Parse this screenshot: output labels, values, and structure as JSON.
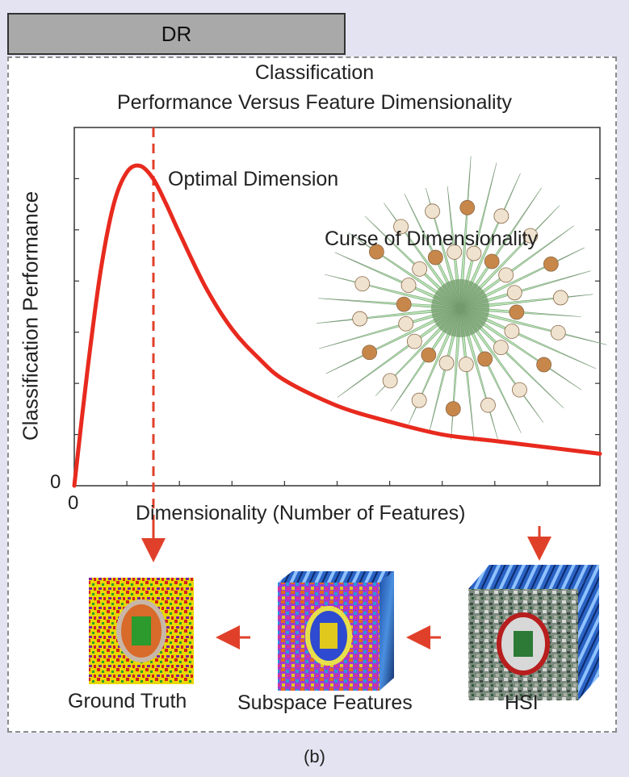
{
  "tab": {
    "label": "DR"
  },
  "figure": {
    "title_line1": "Classification",
    "title_line2": "Performance Versus Feature Dimensionality",
    "y_axis_label": "Classification Performance",
    "x_axis_label": "Dimensionality (Number of Features)",
    "y_origin": "0",
    "x_origin": "0",
    "annotation_optimal": "Optimal Dimension",
    "annotation_curse": "Curse of Dimensionality",
    "caption": "(b)"
  },
  "pipeline": {
    "ground_truth": "Ground Truth",
    "subspace": "Subspace Features",
    "hsi": "HSI"
  },
  "colors": {
    "curve": "#e82a1e",
    "arrow": "#e0402a",
    "spike_fill": "#9fdc9a",
    "background": "#e4e3f2"
  },
  "chart_data": {
    "type": "line",
    "title": "Classification Performance Versus Feature Dimensionality",
    "xlabel": "Dimensionality (Number of Features)",
    "ylabel": "Classification Performance",
    "x": [
      0,
      0.25,
      0.5,
      0.75,
      1.0,
      1.25,
      1.5,
      1.75,
      2.0,
      2.5,
      3.0,
      3.5,
      4.0,
      5.0,
      6.0,
      7.0,
      8.0,
      9.0,
      10.0
    ],
    "y": [
      0,
      0.36,
      0.67,
      0.88,
      0.98,
      1.0,
      0.96,
      0.88,
      0.79,
      0.62,
      0.49,
      0.4,
      0.33,
      0.25,
      0.2,
      0.16,
      0.14,
      0.12,
      0.1
    ],
    "annotations": [
      "Optimal Dimension",
      "Curse of Dimensionality"
    ]
  }
}
